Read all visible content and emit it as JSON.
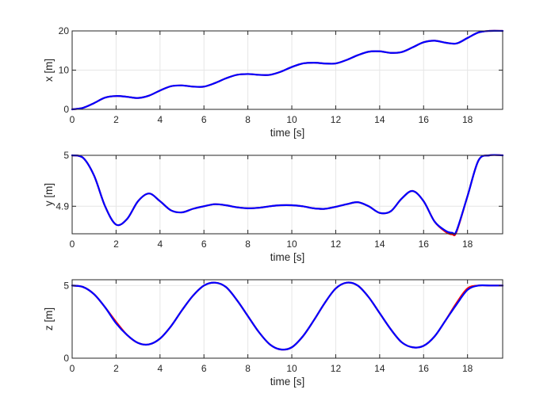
{
  "chart_data": [
    {
      "type": "line",
      "xlabel": "time [s]",
      "ylabel": "x [m]",
      "xlim": [
        0,
        19.6
      ],
      "ylim": [
        0,
        20
      ],
      "xticks": [
        "0",
        "2",
        "4",
        "6",
        "8",
        "10",
        "12",
        "14",
        "16",
        "18"
      ],
      "xtick_values": [
        0,
        2,
        4,
        6,
        8,
        10,
        12,
        14,
        16,
        18
      ],
      "yticks": [
        "0",
        "10",
        "20"
      ],
      "ytick_values": [
        0,
        10,
        20
      ],
      "grid": true,
      "series": [
        {
          "color": "#ff0000",
          "x": [
            0,
            0.5,
            1,
            1.5,
            2,
            2.5,
            3,
            3.5,
            4,
            4.5,
            5,
            5.5,
            6,
            6.5,
            7,
            7.5,
            8,
            8.5,
            9,
            9.5,
            10,
            10.5,
            11,
            11.5,
            12,
            12.5,
            13,
            13.5,
            14,
            14.5,
            15,
            15.5,
            16,
            16.5,
            17,
            17.5,
            18,
            18.5,
            19,
            19.6
          ],
          "y": [
            0,
            0.4,
            1.6,
            3.0,
            3.4,
            3.2,
            2.9,
            3.5,
            4.8,
            5.9,
            6.1,
            5.8,
            5.8,
            6.7,
            7.9,
            8.8,
            9.0,
            8.8,
            8.8,
            9.6,
            10.8,
            11.7,
            11.9,
            11.7,
            11.7,
            12.6,
            13.8,
            14.7,
            14.8,
            14.4,
            14.6,
            15.8,
            17.1,
            17.5,
            17.0,
            16.8,
            18.2,
            19.6,
            20.0,
            20.0
          ]
        },
        {
          "color": "#0000ff",
          "x": [
            0,
            0.5,
            1,
            1.5,
            2,
            2.5,
            3,
            3.5,
            4,
            4.5,
            5,
            5.5,
            6,
            6.5,
            7,
            7.5,
            8,
            8.5,
            9,
            9.5,
            10,
            10.5,
            11,
            11.5,
            12,
            12.5,
            13,
            13.5,
            14,
            14.5,
            15,
            15.5,
            16,
            16.5,
            17,
            17.5,
            18,
            18.5,
            19,
            19.6
          ],
          "y": [
            0,
            0.4,
            1.6,
            3.0,
            3.4,
            3.2,
            2.9,
            3.5,
            4.8,
            5.9,
            6.1,
            5.8,
            5.8,
            6.7,
            7.9,
            8.8,
            9.0,
            8.8,
            8.8,
            9.6,
            10.8,
            11.7,
            11.9,
            11.7,
            11.7,
            12.6,
            13.8,
            14.7,
            14.8,
            14.4,
            14.6,
            15.8,
            17.1,
            17.5,
            17.0,
            16.8,
            18.2,
            19.6,
            20.0,
            20.0
          ]
        }
      ]
    },
    {
      "type": "line",
      "xlabel": "time [s]",
      "ylabel": "y [m]",
      "xlim": [
        0,
        19.6
      ],
      "ylim": [
        4.846,
        5.0
      ],
      "xticks": [
        "0",
        "2",
        "4",
        "6",
        "8",
        "10",
        "12",
        "14",
        "16",
        "18"
      ],
      "xtick_values": [
        0,
        2,
        4,
        6,
        8,
        10,
        12,
        14,
        16,
        18
      ],
      "yticks": [
        "4.9",
        "5"
      ],
      "ytick_values": [
        4.9,
        5.0
      ],
      "grid": true,
      "series": [
        {
          "color": "#ff0000",
          "x": [
            0,
            0.5,
            1,
            1.5,
            2,
            2.5,
            3,
            3.5,
            4,
            4.5,
            5,
            5.5,
            6,
            6.5,
            7,
            7.5,
            8,
            8.5,
            9,
            9.5,
            10,
            10.5,
            11,
            11.5,
            12,
            12.5,
            13,
            13.5,
            14,
            14.5,
            15,
            15.5,
            16,
            16.5,
            17,
            17.3,
            17.5,
            18,
            18.5,
            19,
            19.6
          ],
          "y": [
            5.0,
            4.995,
            4.96,
            4.9,
            4.864,
            4.875,
            4.91,
            4.925,
            4.91,
            4.892,
            4.888,
            4.895,
            4.9,
            4.904,
            4.902,
            4.898,
            4.896,
            4.897,
            4.9,
            4.902,
            4.902,
            4.9,
            4.896,
            4.895,
            4.899,
            4.904,
            4.908,
            4.9,
            4.887,
            4.89,
            4.915,
            4.93,
            4.91,
            4.87,
            4.85,
            4.845,
            4.85,
            4.92,
            4.99,
            5.0,
            5.0
          ]
        },
        {
          "color": "#0000ff",
          "x": [
            0,
            0.5,
            1,
            1.5,
            2,
            2.5,
            3,
            3.5,
            4,
            4.5,
            5,
            5.5,
            6,
            6.5,
            7,
            7.5,
            8,
            8.5,
            9,
            9.5,
            10,
            10.5,
            11,
            11.5,
            12,
            12.5,
            13,
            13.5,
            14,
            14.5,
            15,
            15.5,
            16,
            16.5,
            17,
            17.3,
            17.5,
            18,
            18.5,
            19,
            19.6
          ],
          "y": [
            5.0,
            4.995,
            4.96,
            4.9,
            4.864,
            4.875,
            4.91,
            4.925,
            4.91,
            4.892,
            4.888,
            4.895,
            4.9,
            4.904,
            4.902,
            4.898,
            4.896,
            4.897,
            4.9,
            4.902,
            4.902,
            4.9,
            4.896,
            4.895,
            4.899,
            4.904,
            4.908,
            4.9,
            4.887,
            4.89,
            4.915,
            4.93,
            4.91,
            4.87,
            4.852,
            4.848,
            4.852,
            4.92,
            4.99,
            5.0,
            5.0
          ]
        }
      ]
    },
    {
      "type": "line",
      "xlabel": "time [s]",
      "ylabel": "z [m]",
      "xlim": [
        0,
        19.6
      ],
      "ylim": [
        0,
        5.4
      ],
      "xticks": [
        "0",
        "2",
        "4",
        "6",
        "8",
        "10",
        "12",
        "14",
        "16",
        "18"
      ],
      "xtick_values": [
        0,
        2,
        4,
        6,
        8,
        10,
        12,
        14,
        16,
        18
      ],
      "yticks": [
        "0",
        "5"
      ],
      "ytick_values": [
        0,
        5
      ],
      "grid": true,
      "series": [
        {
          "color": "#ff0000",
          "x": [
            0,
            0.5,
            1,
            1.5,
            2,
            2.5,
            3,
            3.5,
            4,
            4.5,
            5,
            5.5,
            6,
            6.5,
            7,
            7.5,
            8,
            8.5,
            9,
            9.5,
            10,
            10.5,
            11,
            11.5,
            12,
            12.5,
            13,
            13.5,
            14,
            14.5,
            15,
            15.5,
            16,
            16.5,
            17,
            17.5,
            18,
            18.5,
            19,
            19.6
          ],
          "y": [
            5.0,
            4.9,
            4.4,
            3.5,
            2.5,
            1.6,
            1.05,
            0.95,
            1.35,
            2.2,
            3.3,
            4.3,
            5.0,
            5.2,
            4.9,
            4.0,
            2.9,
            1.8,
            0.95,
            0.6,
            0.75,
            1.5,
            2.6,
            3.8,
            4.8,
            5.2,
            5.0,
            4.2,
            3.1,
            2.0,
            1.1,
            0.75,
            0.85,
            1.5,
            2.6,
            3.8,
            4.8,
            5.0,
            5.0,
            5.0
          ]
        },
        {
          "color": "#0000ff",
          "x": [
            0,
            0.5,
            1,
            1.5,
            2,
            2.5,
            3,
            3.5,
            4,
            4.5,
            5,
            5.5,
            6,
            6.5,
            7,
            7.5,
            8,
            8.5,
            9,
            9.5,
            10,
            10.5,
            11,
            11.5,
            12,
            12.5,
            13,
            13.5,
            14,
            14.5,
            15,
            15.5,
            16,
            16.5,
            17,
            17.5,
            18,
            18.5,
            19,
            19.6
          ],
          "y": [
            5.0,
            4.9,
            4.4,
            3.5,
            2.4,
            1.6,
            1.05,
            0.95,
            1.35,
            2.2,
            3.3,
            4.3,
            5.0,
            5.2,
            4.9,
            4.0,
            2.9,
            1.8,
            0.95,
            0.6,
            0.75,
            1.5,
            2.6,
            3.8,
            4.8,
            5.2,
            5.0,
            4.2,
            3.1,
            2.0,
            1.1,
            0.75,
            0.85,
            1.5,
            2.6,
            3.7,
            4.7,
            5.0,
            5.0,
            5.0
          ]
        }
      ]
    }
  ]
}
